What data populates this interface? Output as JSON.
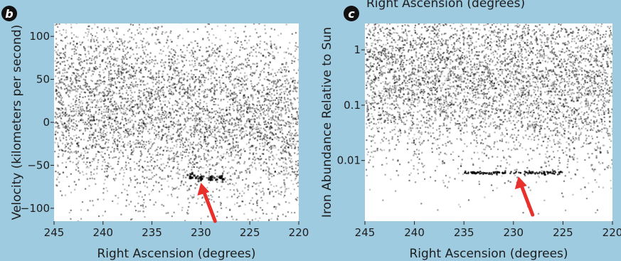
{
  "top_title_fragment": "Right Ascension (degrees)",
  "colors": {
    "background": "#9fcbe0",
    "plot_bg": "#ffffff",
    "points": "#000000",
    "badge": "#111111",
    "arrow": "#e8312b",
    "stream": "#000000"
  },
  "chart_data": [
    {
      "panel_label": "b",
      "type": "scatter",
      "title": "",
      "xlabel": "Right Ascension (degrees)",
      "ylabel": "Velocity (kilometers per second)",
      "xlim": [
        245,
        220
      ],
      "ylim": [
        -115,
        115
      ],
      "y_scale": "linear",
      "x_ticks": [
        "245",
        "240",
        "235",
        "230",
        "225",
        "220"
      ],
      "y_ticks": [
        "100",
        "50",
        "0",
        "-50",
        "-100"
      ],
      "density_band": {
        "center": [
          30,
          0
        ],
        "spread": 55
      },
      "stream": [
        {
          "x": 231,
          "y": -63
        },
        {
          "x": 230,
          "y": -65
        },
        {
          "x": 229,
          "y": -66
        },
        {
          "x": 228,
          "y": -65
        }
      ],
      "arrow_target": {
        "x": 230,
        "y": -67
      },
      "grid": false
    },
    {
      "panel_label": "c",
      "type": "scatter",
      "title": "",
      "xlabel": "Right Ascension (degrees)",
      "ylabel": "Iron Abundance Relative to Sun",
      "xlim": [
        245,
        220
      ],
      "ylim": [
        0.0008,
        3
      ],
      "y_scale": "log",
      "x_ticks": [
        "245",
        "240",
        "235",
        "230",
        "225",
        "220"
      ],
      "y_ticks": [
        "1",
        "0.1",
        "0.01"
      ],
      "density_band": {
        "center_log10": [
          -0.4,
          -0.6
        ],
        "spread_log10": 0.8
      },
      "stream_x_range": [
        235,
        225
      ],
      "stream_y": 0.006,
      "arrow_target": {
        "x": 229.5,
        "y": 0.0058
      },
      "grid": false
    }
  ]
}
